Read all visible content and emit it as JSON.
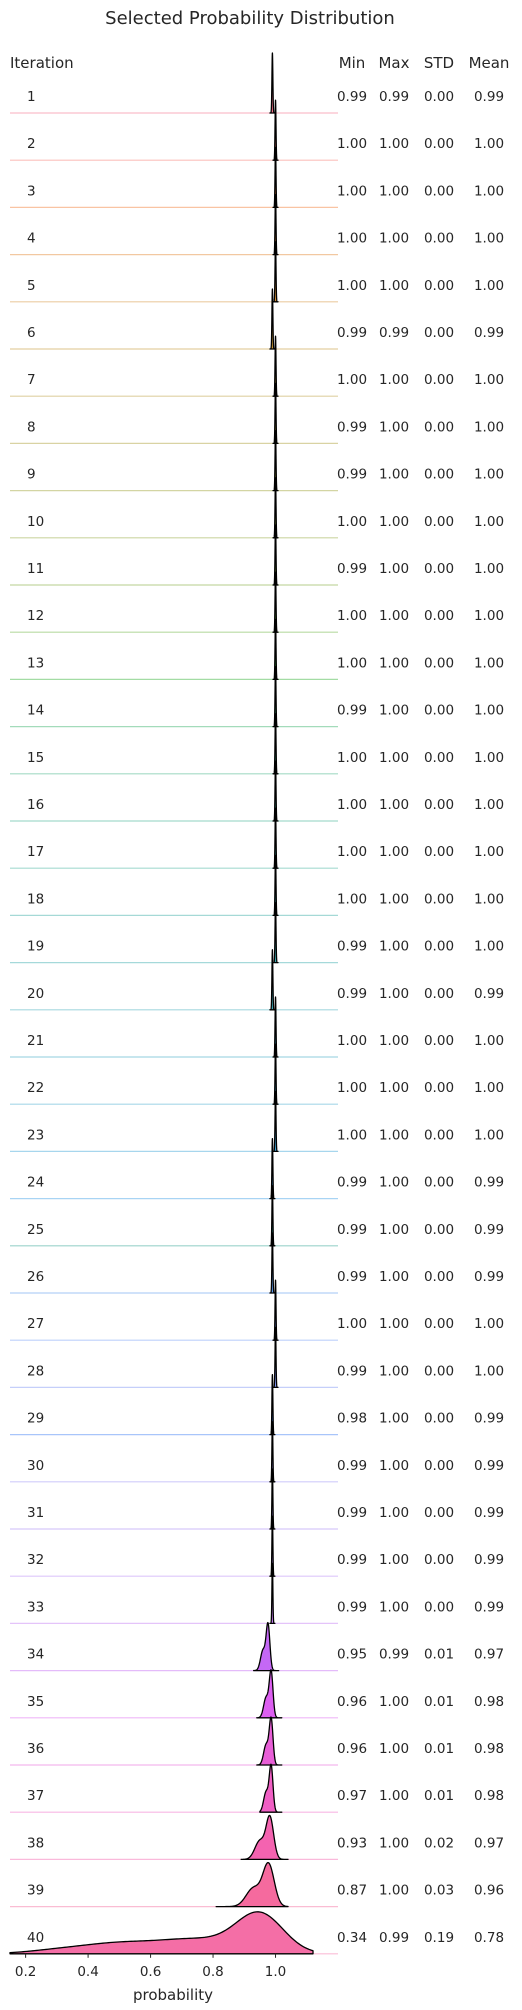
{
  "chart_data": {
    "type": "ridgeline",
    "title": "Selected Probability Distribution",
    "xlabel": "probability",
    "xlim": [
      0.15,
      1.2
    ],
    "xticks": [
      0.2,
      0.4,
      0.6,
      0.8,
      1.0
    ],
    "xtick_labels": [
      "0.2",
      "0.4",
      "0.6",
      "0.8",
      "1.0"
    ],
    "row_header": "Iteration",
    "stat_headers": [
      "Min",
      "Max",
      "STD",
      "Mean"
    ],
    "rows": [
      {
        "iteration": "1",
        "min": "0.99",
        "max": "0.99",
        "std": "0.00",
        "mean": "0.99",
        "color": "#f77189"
      },
      {
        "iteration": "2",
        "min": "1.00",
        "max": "1.00",
        "std": "0.00",
        "mean": "1.00",
        "color": "#f7756a"
      },
      {
        "iteration": "3",
        "min": "1.00",
        "max": "1.00",
        "std": "0.00",
        "mean": "1.00",
        "color": "#f27d32"
      },
      {
        "iteration": "4",
        "min": "1.00",
        "max": "1.00",
        "std": "0.00",
        "mean": "1.00",
        "color": "#e2862f"
      },
      {
        "iteration": "5",
        "min": "1.00",
        "max": "1.00",
        "std": "0.00",
        "mean": "1.00",
        "color": "#d38d31"
      },
      {
        "iteration": "6",
        "min": "0.99",
        "max": "0.99",
        "std": "0.00",
        "mean": "0.99",
        "color": "#c59431"
      },
      {
        "iteration": "7",
        "min": "1.00",
        "max": "1.00",
        "std": "0.00",
        "mean": "1.00",
        "color": "#b89931"
      },
      {
        "iteration": "8",
        "min": "0.99",
        "max": "1.00",
        "std": "0.00",
        "mean": "1.00",
        "color": "#ab9d32"
      },
      {
        "iteration": "9",
        "min": "0.99",
        "max": "1.00",
        "std": "0.00",
        "mean": "1.00",
        "color": "#9ea133"
      },
      {
        "iteration": "10",
        "min": "1.00",
        "max": "1.00",
        "std": "0.00",
        "mean": "1.00",
        "color": "#8fa533"
      },
      {
        "iteration": "11",
        "min": "0.99",
        "max": "1.00",
        "std": "0.00",
        "mean": "1.00",
        "color": "#7ca932"
      },
      {
        "iteration": "12",
        "min": "1.00",
        "max": "1.00",
        "std": "0.00",
        "mean": "1.00",
        "color": "#62ae32"
      },
      {
        "iteration": "13",
        "min": "1.00",
        "max": "1.00",
        "std": "0.00",
        "mean": "1.00",
        "color": "#33b235"
      },
      {
        "iteration": "14",
        "min": "0.99",
        "max": "1.00",
        "std": "0.00",
        "mean": "1.00",
        "color": "#34b067"
      },
      {
        "iteration": "15",
        "min": "1.00",
        "max": "1.00",
        "std": "0.00",
        "mean": "1.00",
        "color": "#35ae7e"
      },
      {
        "iteration": "16",
        "min": "1.00",
        "max": "1.00",
        "std": "0.00",
        "mean": "1.00",
        "color": "#36ad8e"
      },
      {
        "iteration": "17",
        "min": "1.00",
        "max": "1.00",
        "std": "0.00",
        "mean": "1.00",
        "color": "#37ac9a"
      },
      {
        "iteration": "18",
        "min": "1.00",
        "max": "1.00",
        "std": "0.00",
        "mean": "1.00",
        "color": "#37aba5"
      },
      {
        "iteration": "19",
        "min": "0.99",
        "max": "1.00",
        "std": "0.00",
        "mean": "1.00",
        "color": "#38aaae"
      },
      {
        "iteration": "20",
        "min": "0.99",
        "max": "1.00",
        "std": "0.00",
        "mean": "0.99",
        "color": "#39a9b7"
      },
      {
        "iteration": "21",
        "min": "1.00",
        "max": "1.00",
        "std": "0.00",
        "mean": "1.00",
        "color": "#3aa8c0"
      },
      {
        "iteration": "22",
        "min": "1.00",
        "max": "1.00",
        "std": "0.00",
        "mean": "1.00",
        "color": "#3ba6cb"
      },
      {
        "iteration": "23",
        "min": "1.00",
        "max": "1.00",
        "std": "0.00",
        "mean": "1.00",
        "color": "#3ca4d7"
      },
      {
        "iteration": "24",
        "min": "0.99",
        "max": "1.00",
        "std": "0.00",
        "mean": "0.99",
        "color": "#3ea0e6"
      },
      {
        "iteration": "25",
        "min": "0.99",
        "max": "1.00",
        "std": "0.00",
        "mean": "0.99",
        "color": "#1f9e89"
      },
      {
        "iteration": "26",
        "min": "0.99",
        "max": "1.00",
        "std": "0.00",
        "mean": "0.99",
        "color": "#5a9cf0"
      },
      {
        "iteration": "27",
        "min": "1.00",
        "max": "1.00",
        "std": "0.00",
        "mean": "1.00",
        "color": "#6e98f4"
      },
      {
        "iteration": "28",
        "min": "0.99",
        "max": "1.00",
        "std": "0.00",
        "mean": "1.00",
        "color": "#7e94f4"
      },
      {
        "iteration": "29",
        "min": "0.98",
        "max": "1.00",
        "std": "0.00",
        "mean": "0.99",
        "color": "#3d7ff4"
      },
      {
        "iteration": "30",
        "min": "0.99",
        "max": "1.00",
        "std": "0.00",
        "mean": "0.99",
        "color": "#9a8df4"
      },
      {
        "iteration": "31",
        "min": "0.99",
        "max": "1.00",
        "std": "0.00",
        "mean": "0.99",
        "color": "#a888f4"
      },
      {
        "iteration": "32",
        "min": "0.99",
        "max": "1.00",
        "std": "0.00",
        "mean": "0.99",
        "color": "#b583f4"
      },
      {
        "iteration": "33",
        "min": "0.99",
        "max": "1.00",
        "std": "0.00",
        "mean": "0.99",
        "color": "#c47cf3"
      },
      {
        "iteration": "34",
        "min": "0.95",
        "max": "0.99",
        "std": "0.01",
        "mean": "0.97",
        "color": "#c468f5"
      },
      {
        "iteration": "35",
        "min": "0.96",
        "max": "1.00",
        "std": "0.01",
        "mean": "0.98",
        "color": "#dc5ff0"
      },
      {
        "iteration": "36",
        "min": "0.96",
        "max": "1.00",
        "std": "0.01",
        "mean": "0.98",
        "color": "#e85fd7"
      },
      {
        "iteration": "37",
        "min": "0.97",
        "max": "1.00",
        "std": "0.01",
        "mean": "0.98",
        "color": "#f05fc4"
      },
      {
        "iteration": "38",
        "min": "0.93",
        "max": "1.00",
        "std": "0.02",
        "mean": "0.97",
        "color": "#f463b0"
      },
      {
        "iteration": "39",
        "min": "0.87",
        "max": "1.00",
        "std": "0.03",
        "mean": "0.96",
        "color": "#f56a9e"
      },
      {
        "iteration": "40",
        "min": "0.34",
        "max": "0.99",
        "std": "0.19",
        "mean": "0.78",
        "color": "#f46ea6"
      }
    ]
  }
}
